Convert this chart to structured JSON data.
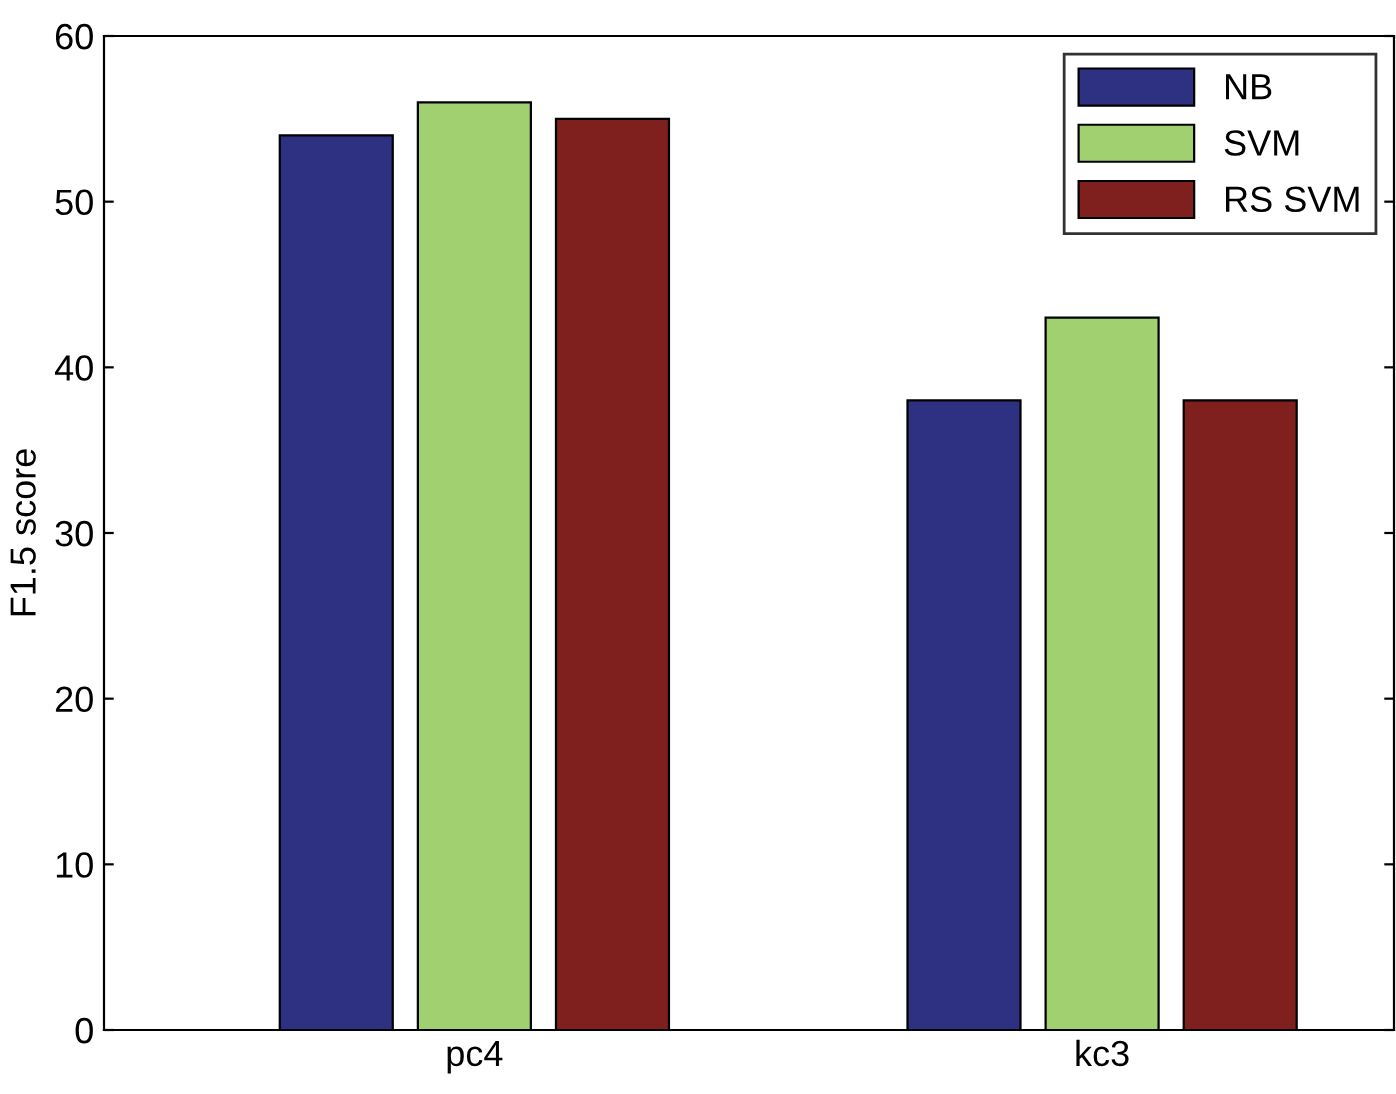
{
  "chart_data": {
    "type": "bar",
    "ylabel": "F1.5 score",
    "categories": [
      "pc4",
      "kc3"
    ],
    "series": [
      {
        "name": "NB",
        "color": "#2e3182",
        "values": [
          54,
          38
        ]
      },
      {
        "name": "SVM",
        "color": "#a0d070",
        "values": [
          56,
          43
        ]
      },
      {
        "name": "RS SVM",
        "color": "#7f1f1e",
        "values": [
          55,
          38
        ]
      }
    ],
    "ylim": [
      0,
      60
    ],
    "yticks": [
      0,
      10,
      20,
      30,
      40,
      50,
      60
    ],
    "grid": false,
    "legend": "top right"
  }
}
